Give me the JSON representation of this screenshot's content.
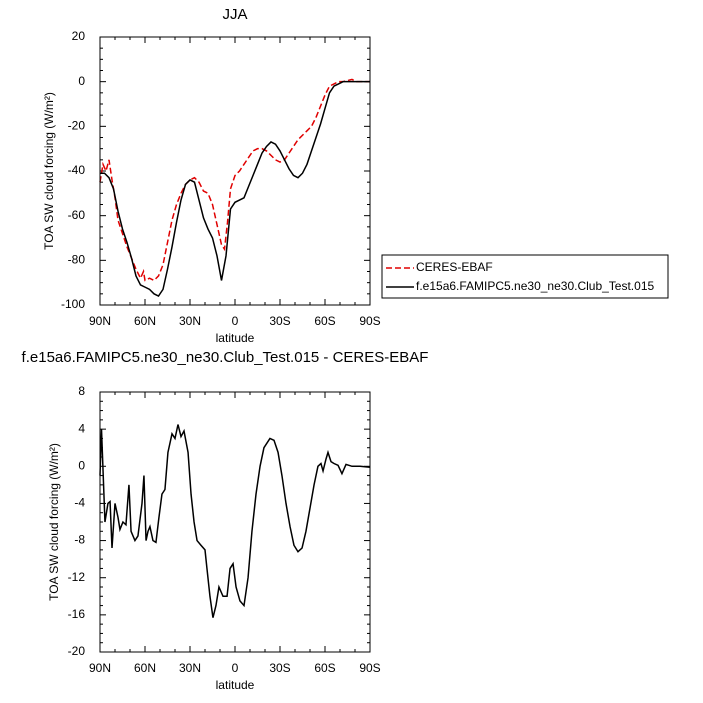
{
  "chart_data": [
    {
      "type": "line",
      "title": "JJA",
      "xlabel": "latitude",
      "ylabel": "TOA SW cloud forcing (W/m²)",
      "xlim": [
        90,
        -90
      ],
      "xticks": [
        {
          "value": 90,
          "label": "90N"
        },
        {
          "value": 60,
          "label": "60N"
        },
        {
          "value": 30,
          "label": "30N"
        },
        0,
        {
          "value": -30,
          "label": "30S"
        },
        {
          "value": -60,
          "label": "60S"
        },
        {
          "value": -90,
          "label": "90S"
        }
      ],
      "ylim": [
        -100,
        20
      ],
      "yticks": [
        -100,
        -80,
        -60,
        -40,
        -20,
        0,
        20
      ],
      "legend": "outside-right",
      "series": [
        {
          "name": "CERES-EBAF",
          "color": "#e00000",
          "dash": true,
          "x": [
            90,
            88,
            86,
            84,
            82,
            80,
            78,
            75,
            72,
            69,
            66,
            63,
            61,
            60,
            57,
            54,
            51,
            48,
            45,
            42,
            39,
            36,
            33,
            30,
            27,
            24,
            21,
            18,
            15,
            12,
            9,
            7,
            5,
            3,
            0,
            -3,
            -6,
            -9,
            -12,
            -15,
            -18,
            -21,
            -24,
            -27,
            -30,
            -33,
            -36,
            -39,
            -42,
            -45,
            -48,
            -51,
            -54,
            -57,
            -60,
            -63,
            -66,
            -69,
            -72,
            -75,
            -78,
            -81,
            -90
          ],
          "values": [
            -45,
            -37,
            -40,
            -35,
            -44,
            -52,
            -62,
            -68,
            -74,
            -79,
            -84,
            -88,
            -85,
            -89,
            -88,
            -89,
            -87,
            -82,
            -72,
            -62,
            -55,
            -50,
            -46,
            -44,
            -43,
            -45,
            -49,
            -50,
            -55,
            -64,
            -73,
            -75,
            -63,
            -48,
            -42,
            -40,
            -37,
            -34,
            -31,
            -30,
            -30,
            -31,
            -33,
            -35,
            -36,
            -35,
            -32,
            -29,
            -26,
            -24,
            -22,
            -20,
            -16,
            -11,
            -6,
            -2,
            -1,
            0,
            0,
            0.5,
            1,
            0,
            0
          ]
        },
        {
          "name": "f.e15a6.FAMIPC5.ne30_ne30.Club_Test.015",
          "color": "#000000",
          "dash": false,
          "x": [
            90,
            87,
            84,
            81,
            78,
            75,
            72,
            69,
            66,
            63,
            60,
            57,
            54,
            51,
            48,
            45,
            42,
            39,
            36,
            33,
            30,
            27,
            24,
            21,
            18,
            15,
            12,
            9,
            6,
            3,
            0,
            -3,
            -6,
            -9,
            -12,
            -15,
            -18,
            -21,
            -24,
            -27,
            -30,
            -33,
            -36,
            -39,
            -42,
            -45,
            -48,
            -51,
            -54,
            -57,
            -60,
            -63,
            -66,
            -69,
            -72,
            -75,
            -80,
            -85,
            -90
          ],
          "values": [
            -41,
            -41,
            -43,
            -48,
            -58,
            -66,
            -72,
            -79,
            -87,
            -91,
            -92,
            -93,
            -95,
            -96,
            -93,
            -84,
            -74,
            -63,
            -53,
            -46,
            -44,
            -45,
            -53,
            -61,
            -66,
            -70,
            -78,
            -89,
            -78,
            -57,
            -54,
            -53,
            -52,
            -47,
            -42,
            -37,
            -32,
            -29,
            -27,
            -28,
            -31,
            -35,
            -39,
            -42,
            -43,
            -41,
            -37,
            -31,
            -25,
            -19,
            -12,
            -5,
            -2,
            -1,
            0,
            0,
            0,
            0,
            0
          ]
        }
      ]
    },
    {
      "type": "line",
      "title": "f.e15a6.FAMIPC5.ne30_ne30.Club_Test.015 - CERES-EBAF",
      "xlabel": "latitude",
      "ylabel": "TOA SW cloud forcing (W/m²)",
      "xlim": [
        90,
        -90
      ],
      "xticks": [
        {
          "value": 90,
          "label": "90N"
        },
        {
          "value": 60,
          "label": "60N"
        },
        {
          "value": 30,
          "label": "30N"
        },
        0,
        {
          "value": -30,
          "label": "30S"
        },
        {
          "value": -60,
          "label": "60S"
        },
        {
          "value": -90,
          "label": "90S"
        }
      ],
      "ylim": [
        -20,
        8
      ],
      "yticks": [
        -20,
        -16,
        -12,
        -8,
        -4,
        0,
        4,
        8
      ],
      "color": "#000000",
      "x": [
        90,
        89,
        86.7,
        84.7,
        83.3,
        82,
        80,
        78,
        76.7,
        74.7,
        72.7,
        70.7,
        69.3,
        66.7,
        64.7,
        62,
        60.7,
        59.3,
        58,
        56.7,
        54.7,
        52.7,
        50.7,
        48.7,
        46.7,
        44.7,
        42,
        40,
        38,
        36,
        34,
        31.3,
        29.3,
        27.3,
        25.3,
        22.7,
        20,
        18.7,
        16.7,
        14.7,
        12.7,
        10.7,
        8,
        5.3,
        3.3,
        1.3,
        -0.7,
        -3.3,
        -6,
        -8.7,
        -11.3,
        -14,
        -16.7,
        -19.3,
        -23.3,
        -26,
        -28.7,
        -31.3,
        -34,
        -36.7,
        -39.3,
        -42,
        -44.7,
        -47.3,
        -50,
        -52.7,
        -55.3,
        -57.3,
        -58.7,
        -60.7,
        -62,
        -64,
        -66,
        -68.7,
        -71.3,
        -74,
        -78,
        -83.3,
        -90
      ],
      "values": [
        -1,
        4,
        -6,
        -4,
        -3.8,
        -8.8,
        -4,
        -5.5,
        -6.8,
        -6,
        -6.3,
        -2,
        -7,
        -8,
        -7.5,
        -4,
        -1,
        -8,
        -7,
        -6.5,
        -8,
        -8.2,
        -5.5,
        -3,
        -2.5,
        1.5,
        3.5,
        3,
        4.5,
        3.2,
        3.8,
        1.5,
        -3,
        -6,
        -8,
        -8.5,
        -9,
        -11,
        -14,
        -16.3,
        -15,
        -13,
        -14,
        -14,
        -11,
        -10.5,
        -13,
        -14.5,
        -15,
        -12,
        -7,
        -3,
        0,
        2,
        3,
        2.8,
        1.5,
        -1,
        -4,
        -6.5,
        -8.5,
        -9.2,
        -8.8,
        -7,
        -4.5,
        -2,
        0,
        0.3,
        -0.5,
        0.8,
        1.5,
        0.5,
        0.3,
        0.1,
        -0.8,
        0.2,
        0,
        0,
        -0.1
      ]
    }
  ]
}
